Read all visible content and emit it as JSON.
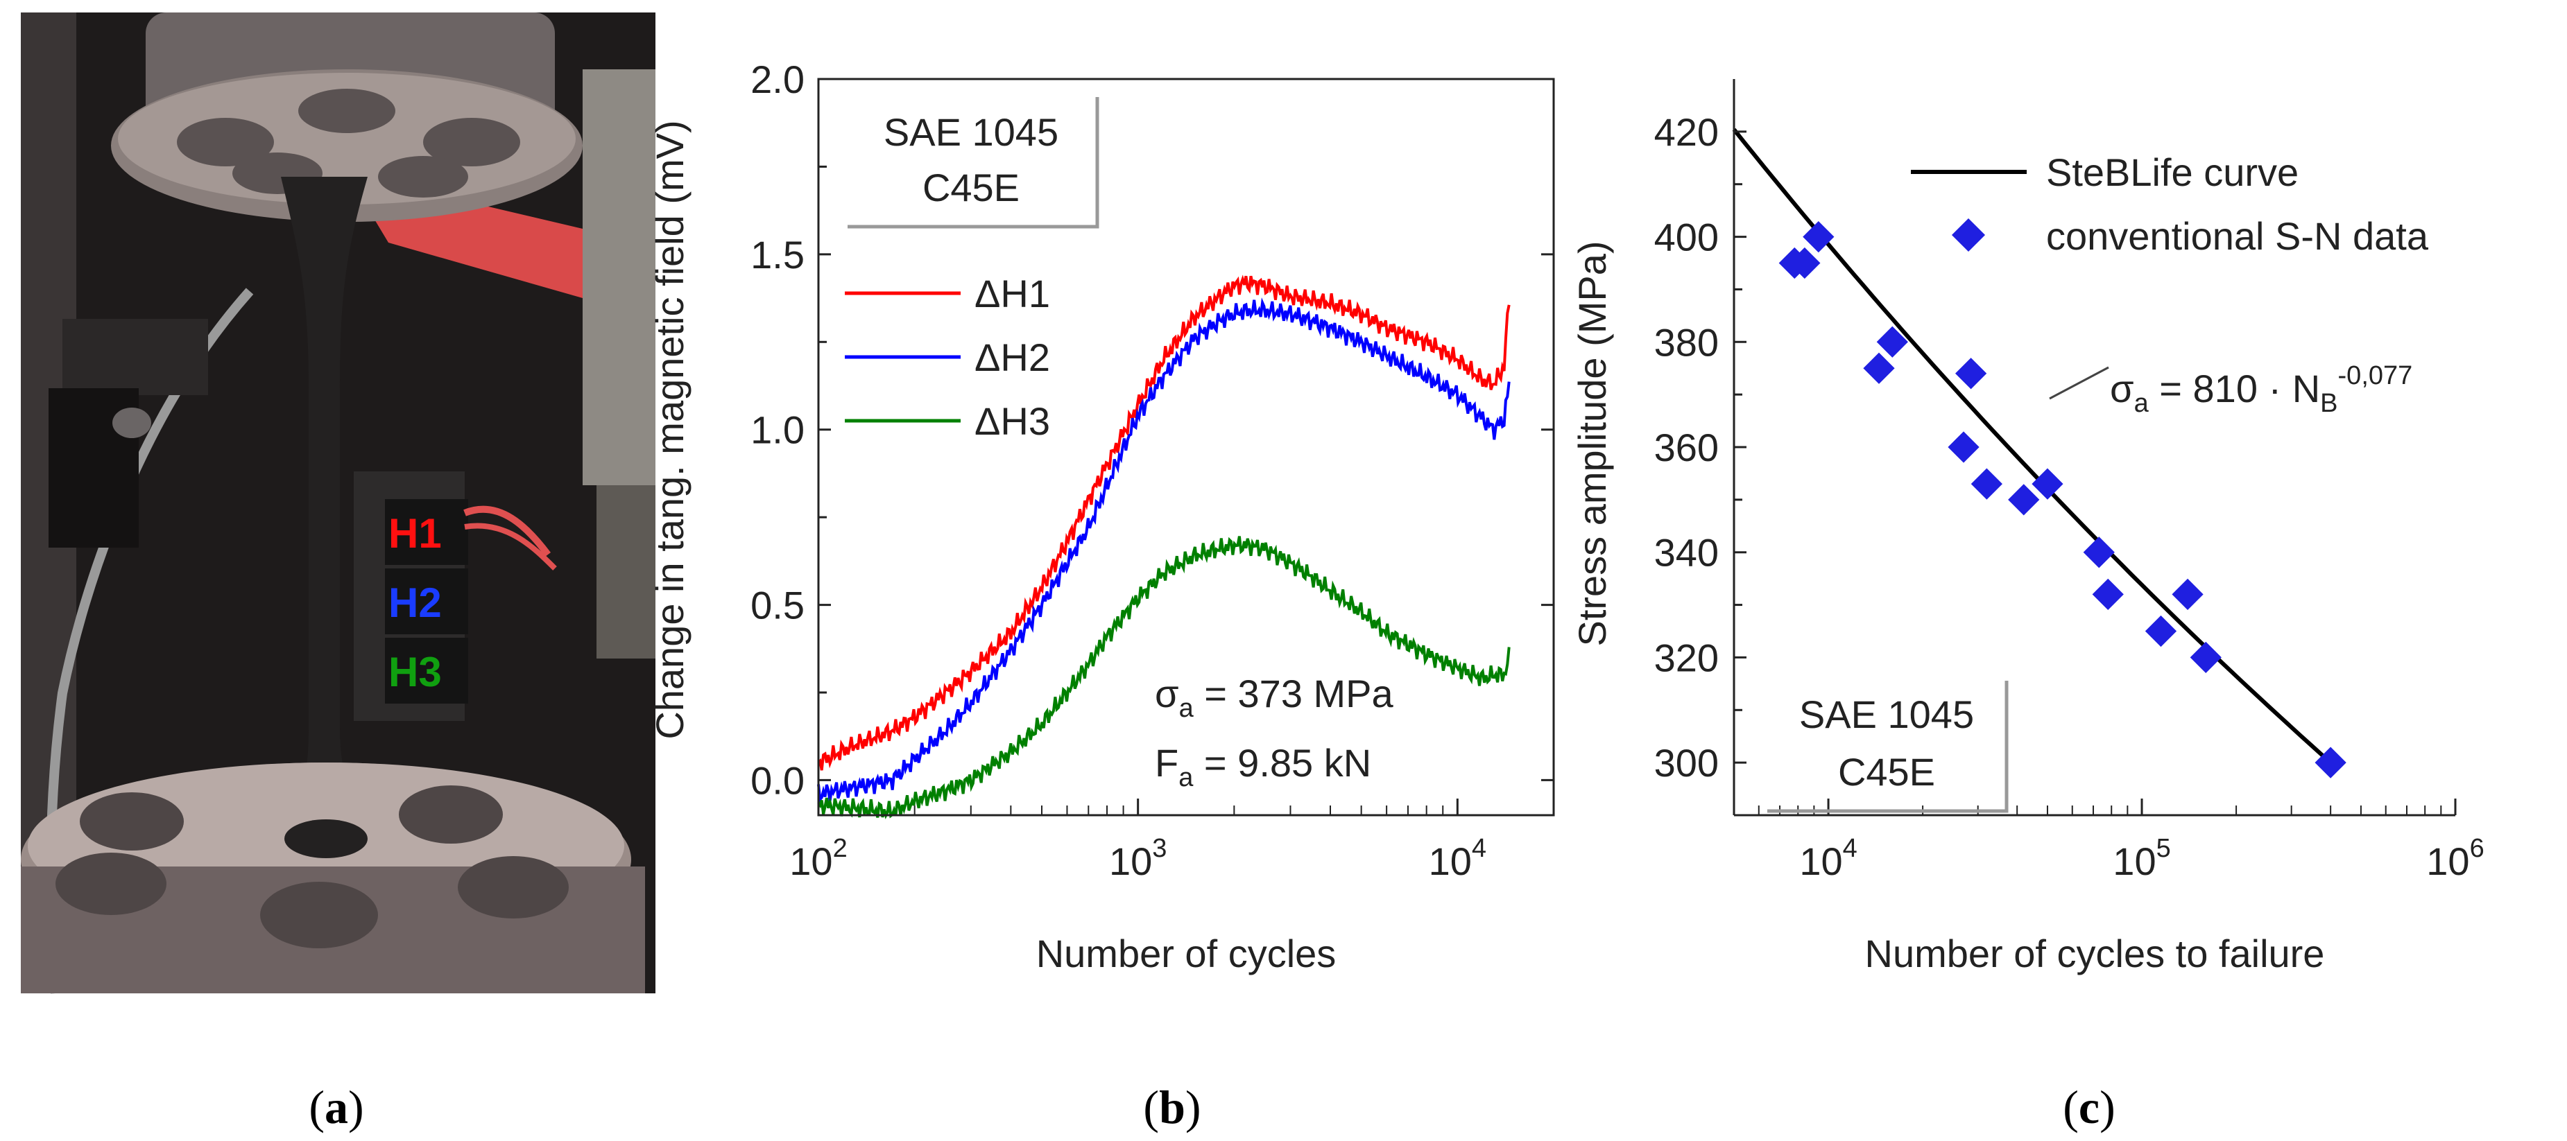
{
  "photo_labels": [
    "H1",
    "H2",
    "H3"
  ],
  "captions": {
    "open": "(",
    "close": ")",
    "a": "a",
    "b": "b",
    "c": "c"
  },
  "colors": {
    "h1": "#ff0000",
    "h2": "#0000ff",
    "h3": "#008000",
    "points": "#1f1fe0",
    "fit": "#000000"
  },
  "chart_data": [
    {
      "type": "line",
      "title": "",
      "xlabel": "Number of cycles",
      "ylabel": "Change in tang. magnetic field (mV)",
      "xscale": "log",
      "xlim": [
        100,
        20000
      ],
      "ylim": [
        -0.1,
        2.0
      ],
      "xticks": [
        {
          "base": "10",
          "exp": "2",
          "value": 100
        },
        {
          "base": "10",
          "exp": "3",
          "value": 1000
        },
        {
          "base": "10",
          "exp": "4",
          "value": 10000
        }
      ],
      "yticks": [
        "0.0",
        "0.5",
        "1.0",
        "1.5",
        "2.0"
      ],
      "material": [
        "SAE 1045",
        "C45E"
      ],
      "legend_position": "top-left",
      "annotation": {
        "sigma_sym": "σ",
        "sigma_sub": "a",
        "sigma_text": " = 373 MPa",
        "f_sym": "F",
        "f_sub": "a",
        "f_text": " = 9.85 kN"
      },
      "series": [
        {
          "name": "ΔH1",
          "color": "#ff0000",
          "x": [
            100,
            130,
            170,
            200,
            250,
            300,
            400,
            500,
            600,
            700,
            800,
            1000,
            1200,
            1500,
            1800,
            2000,
            2200,
            2500,
            3000,
            3500,
            4000,
            5000,
            6000,
            8000,
            10000,
            12000,
            13000,
            14000,
            14500
          ],
          "y": [
            0.05,
            0.1,
            0.14,
            0.18,
            0.25,
            0.31,
            0.42,
            0.55,
            0.68,
            0.8,
            0.9,
            1.07,
            1.2,
            1.32,
            1.38,
            1.41,
            1.42,
            1.41,
            1.38,
            1.37,
            1.36,
            1.33,
            1.29,
            1.25,
            1.2,
            1.14,
            1.13,
            1.18,
            1.38
          ]
        },
        {
          "name": "ΔH2",
          "color": "#0000ff",
          "x": [
            100,
            130,
            170,
            200,
            250,
            300,
            400,
            500,
            600,
            700,
            800,
            1000,
            1200,
            1500,
            1800,
            2000,
            2200,
            2500,
            3000,
            3500,
            4000,
            5000,
            6000,
            8000,
            10000,
            12000,
            13000,
            14000,
            14500
          ],
          "y": [
            -0.04,
            -0.02,
            0.0,
            0.06,
            0.14,
            0.22,
            0.37,
            0.5,
            0.62,
            0.72,
            0.84,
            1.04,
            1.15,
            1.26,
            1.31,
            1.33,
            1.34,
            1.34,
            1.33,
            1.31,
            1.29,
            1.25,
            1.21,
            1.15,
            1.1,
            1.03,
            1.0,
            1.03,
            1.13
          ]
        },
        {
          "name": "ΔH3",
          "color": "#008000",
          "x": [
            100,
            130,
            170,
            200,
            250,
            300,
            400,
            500,
            600,
            700,
            800,
            1000,
            1200,
            1500,
            1800,
            2000,
            2200,
            2500,
            3000,
            3500,
            4000,
            5000,
            6000,
            8000,
            10000,
            12000,
            13000,
            14000,
            14500
          ],
          "y": [
            -0.07,
            -0.08,
            -0.09,
            -0.06,
            -0.03,
            0.0,
            0.08,
            0.16,
            0.25,
            0.33,
            0.41,
            0.52,
            0.59,
            0.64,
            0.66,
            0.67,
            0.67,
            0.66,
            0.62,
            0.58,
            0.54,
            0.48,
            0.42,
            0.36,
            0.32,
            0.29,
            0.3,
            0.3,
            0.35
          ]
        }
      ]
    },
    {
      "type": "scatter",
      "title": "",
      "xlabel": "Number of cycles to failure",
      "ylabel": "Stress amplitude (MPa)",
      "xscale": "log",
      "xlim": [
        5000,
        1000000
      ],
      "ylim": [
        290,
        430
      ],
      "xticks": [
        {
          "base": "10",
          "exp": "4",
          "value": 10000
        },
        {
          "base": "10",
          "exp": "5",
          "value": 100000
        },
        {
          "base": "10",
          "exp": "6",
          "value": 1000000
        }
      ],
      "yticks": [
        "300",
        "320",
        "340",
        "360",
        "380",
        "400",
        "420"
      ],
      "material": [
        "SAE 1045",
        "C45E"
      ],
      "legend_position": "top-right",
      "legend": {
        "curve": "SteBLife curve",
        "points": "conventional S-N data"
      },
      "equation": {
        "sym": "σ",
        "sub": "a",
        "mid": " = 810 · N",
        "sub2": "B",
        "exp": "-0,077"
      },
      "fit": {
        "coef": 810,
        "exp": -0.077,
        "x_from": 5000,
        "x_to": 400000
      },
      "points": [
        {
          "x": 7800,
          "y": 395
        },
        {
          "x": 8400,
          "y": 395
        },
        {
          "x": 9300,
          "y": 400
        },
        {
          "x": 14500,
          "y": 375
        },
        {
          "x": 16000,
          "y": 380
        },
        {
          "x": 27000,
          "y": 360
        },
        {
          "x": 28500,
          "y": 374
        },
        {
          "x": 32000,
          "y": 353
        },
        {
          "x": 42000,
          "y": 350
        },
        {
          "x": 50000,
          "y": 353
        },
        {
          "x": 73000,
          "y": 340
        },
        {
          "x": 78000,
          "y": 332
        },
        {
          "x": 115000,
          "y": 325
        },
        {
          "x": 140000,
          "y": 332
        },
        {
          "x": 160000,
          "y": 320
        },
        {
          "x": 400000,
          "y": 300
        }
      ]
    }
  ]
}
